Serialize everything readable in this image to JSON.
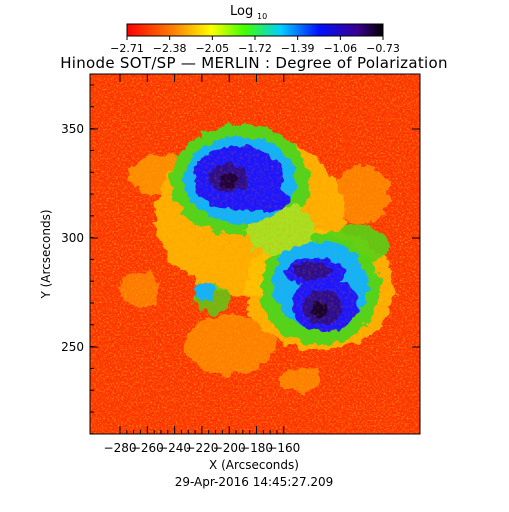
{
  "colorbar": {
    "label": "Log",
    "label_subscript": "10",
    "tick_labels": [
      "-2.71",
      "-2.38",
      "-2.05",
      "-1.72",
      "-1.39",
      "-1.06",
      "-0.73"
    ],
    "colors": [
      "#ff2a00",
      "#ff7a00",
      "#ffe800",
      "#3cdc1a",
      "#00c8ff",
      "#1f2bff",
      "#2a0078",
      "#000000"
    ]
  },
  "title": "Hinode SOT/SP — MERLIN : Degree of Polarization",
  "image": {
    "description_colors": {
      "background": "#ff3a00",
      "mid": "#ffc000",
      "green": "#46d21a",
      "cyan": "#00b4ff",
      "blue": "#1414ff",
      "core": "#1a0050"
    }
  },
  "axes": {
    "xlabel": "X (Arcseconds)",
    "ylabel": "Y (Arcseconds)",
    "x_ticks": [
      "-280",
      "-260",
      "-240",
      "-220",
      "-200",
      "-180",
      "-160"
    ],
    "y_ticks": [
      "350",
      "300",
      "250"
    ]
  },
  "timestamp": "29-Apr-2016 14:45:27.209"
}
